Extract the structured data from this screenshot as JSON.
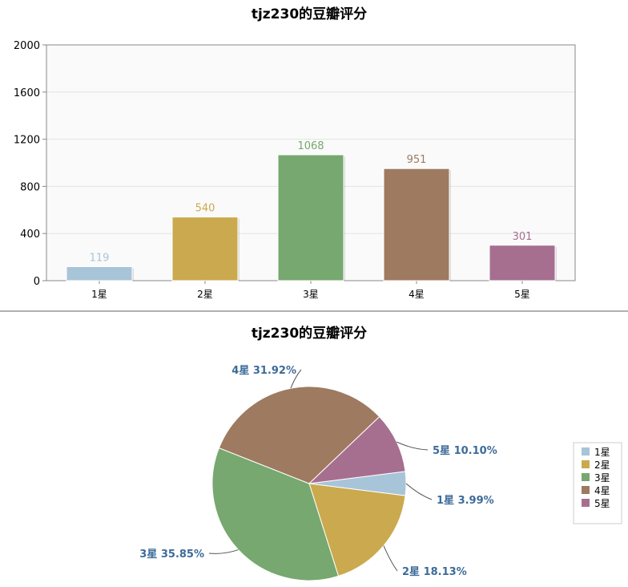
{
  "colors": {
    "1星": "#a8c4d8",
    "2星": "#cba94e",
    "3星": "#77a86f",
    "4星": "#9e7a60",
    "5星": "#a66f90",
    "pie_label": "#3d6b99",
    "plot_bg": "#fafafa",
    "grid": "#e3e3e3",
    "axis": "#888888"
  },
  "chart_data": [
    {
      "type": "bar",
      "title": "tjz230的豆瓣评分",
      "categories": [
        "1星",
        "2星",
        "3星",
        "4星",
        "5星"
      ],
      "values": [
        119,
        540,
        1068,
        951,
        301
      ],
      "data_labels": [
        "119",
        "540",
        "1068",
        "951",
        "301"
      ],
      "ylim": [
        0,
        2000
      ],
      "yticks": [
        0,
        400,
        800,
        1200,
        1600,
        2000
      ],
      "ytick_labels": [
        "0",
        "400",
        "800",
        "1200",
        "1600",
        "2000"
      ],
      "xlabel": "",
      "ylabel": "",
      "grid": true,
      "legend": "none"
    },
    {
      "type": "pie",
      "title": "tjz230的豆瓣评分",
      "labels": [
        "1星",
        "2星",
        "3星",
        "4星",
        "5星"
      ],
      "percent_labels": [
        "3.99%",
        "18.13%",
        "35.85%",
        "31.92%",
        "10.10%"
      ],
      "values": [
        3.99,
        18.13,
        35.85,
        31.92,
        10.1
      ],
      "legend": "right",
      "legend_items": [
        "1星",
        "2星",
        "3星",
        "4星",
        "5星"
      ]
    }
  ]
}
